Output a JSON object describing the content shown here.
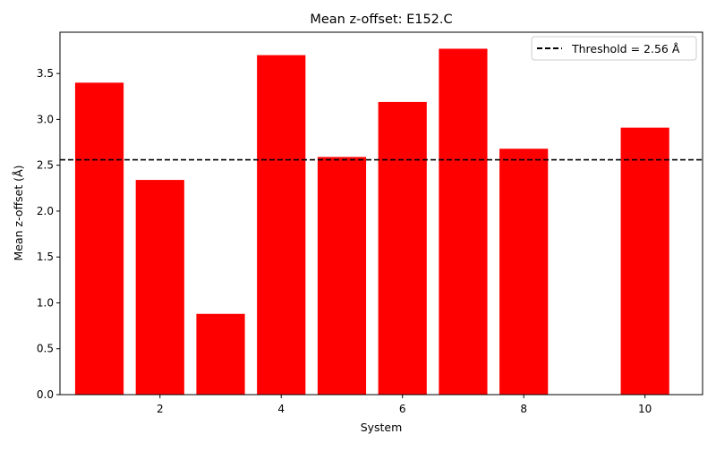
{
  "chart_data": {
    "type": "bar",
    "title": "Mean z-offset: E152.C",
    "xlabel": "System",
    "ylabel": "Mean z-offset (Å)",
    "x": [
      1,
      2,
      3,
      4,
      5,
      6,
      7,
      8,
      10
    ],
    "values": [
      3.4,
      2.34,
      0.88,
      3.7,
      2.59,
      3.19,
      3.77,
      2.68,
      2.91
    ],
    "bar_color": "#ff0000",
    "xlim": [
      0.35,
      10.95
    ],
    "ylim": [
      0,
      3.95
    ],
    "xticks": [
      2,
      4,
      6,
      8,
      10
    ],
    "yticks": [
      0.0,
      0.5,
      1.0,
      1.5,
      2.0,
      2.5,
      3.0,
      3.5
    ],
    "ytick_labels": [
      "0.0",
      "0.5",
      "1.0",
      "1.5",
      "2.0",
      "2.5",
      "3.0",
      "3.5"
    ],
    "threshold": {
      "value": 2.56,
      "label": "Threshold = 2.56 Å",
      "color": "#000000",
      "style": "dashed"
    },
    "legend_position": "top-right",
    "grid": false
  }
}
